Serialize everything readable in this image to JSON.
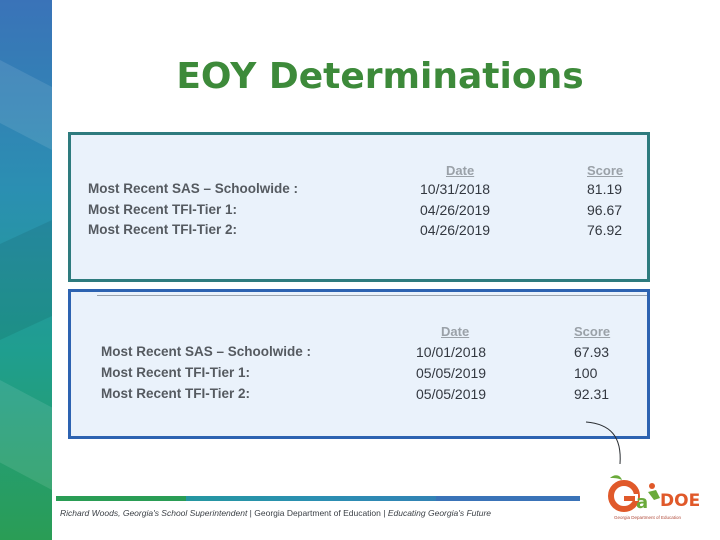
{
  "title": "EOY Determinations",
  "panel1": {
    "headers": {
      "date": "Date",
      "score": "Score"
    },
    "rows": [
      {
        "label": "Most Recent SAS – Schoolwide :",
        "date": "10/31/2018",
        "score": "81.19"
      },
      {
        "label": "Most Recent TFI-Tier 1:",
        "date": "04/26/2019",
        "score": "96.67"
      },
      {
        "label": "Most Recent TFI-Tier 2:",
        "date": "04/26/2019",
        "score": "76.92"
      }
    ]
  },
  "panel2": {
    "headers": {
      "date": "Date",
      "score": "Score"
    },
    "rows": [
      {
        "label": "Most Recent SAS – Schoolwide :",
        "date": "10/01/2018",
        "score": "67.93"
      },
      {
        "label": "Most Recent TFI-Tier 1:",
        "date": "05/05/2019",
        "score": "100"
      },
      {
        "label": "Most Recent TFI-Tier 2:",
        "date": "05/05/2019",
        "score": "92.31"
      }
    ]
  },
  "footer": {
    "part1": "Richard Woods, Georgia's School Superintendent",
    "sep": " | ",
    "part2": "Georgia Department of Education",
    "part3": "Educating Georgia's Future"
  },
  "logo": {
    "text_g": "G",
    "text_doe": "DOE",
    "text_a": "a",
    "caption": "Georgia Department of Education"
  },
  "colors": {
    "title": "#3d8a3a",
    "panel_bg": "#eaf2fb",
    "panel1_border": "#2e7b7e",
    "panel2_border": "#2d63b1"
  }
}
